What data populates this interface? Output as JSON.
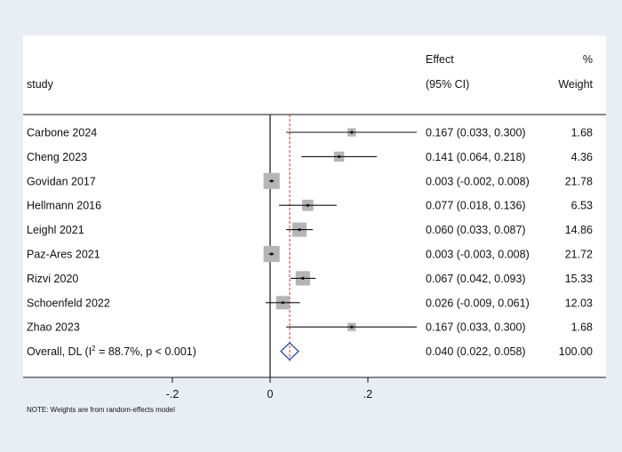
{
  "chart_data": {
    "type": "forest",
    "headers": {
      "study": "study",
      "effect_line1": "Effect",
      "effect_line2": "(95% CI)",
      "weight_line1": "%",
      "weight_line2": "Weight"
    },
    "studies": [
      {
        "label": "Carbone 2024",
        "effect": 0.167,
        "lo": 0.033,
        "hi": 0.3,
        "ci_text": "0.167 (0.033, 0.300)",
        "weight": "1.68"
      },
      {
        "label": "Cheng 2023",
        "effect": 0.141,
        "lo": 0.064,
        "hi": 0.218,
        "ci_text": "0.141 (0.064, 0.218)",
        "weight": "4.36"
      },
      {
        "label": "Govidan 2017",
        "effect": 0.003,
        "lo": -0.002,
        "hi": 0.008,
        "ci_text": "0.003 (-0.002, 0.008)",
        "weight": "21.78"
      },
      {
        "label": "Hellmann 2016",
        "effect": 0.077,
        "lo": 0.018,
        "hi": 0.136,
        "ci_text": "0.077 (0.018, 0.136)",
        "weight": "6.53"
      },
      {
        "label": "Leighl 2021",
        "effect": 0.06,
        "lo": 0.033,
        "hi": 0.087,
        "ci_text": "0.060 (0.033, 0.087)",
        "weight": "14.86"
      },
      {
        "label": "Paz-Ares 2021",
        "effect": 0.003,
        "lo": -0.003,
        "hi": 0.008,
        "ci_text": "0.003 (-0.003, 0.008)",
        "weight": "21.72"
      },
      {
        "label": "Rizvi 2020",
        "effect": 0.067,
        "lo": 0.042,
        "hi": 0.093,
        "ci_text": "0.067 (0.042, 0.093)",
        "weight": "15.33"
      },
      {
        "label": "Schoenfeld 2022",
        "effect": 0.026,
        "lo": -0.009,
        "hi": 0.061,
        "ci_text": "0.026 (-0.009, 0.061)",
        "weight": "12.03"
      },
      {
        "label": "Zhao 2023",
        "effect": 0.167,
        "lo": 0.033,
        "hi": 0.3,
        "ci_text": "0.167 (0.033, 0.300)",
        "weight": "1.68"
      }
    ],
    "overall": {
      "label_prefix": "Overall, DL (I",
      "label_sup": "2",
      "label_suffix": " = 88.7%, p < 0.001)",
      "effect": 0.04,
      "lo": 0.022,
      "hi": 0.058,
      "ci_text": "0.040 (0.022, 0.058)",
      "weight": "100.00"
    },
    "x_ticks": [
      {
        "value": -0.2,
        "label": "-.2"
      },
      {
        "value": 0,
        "label": "0"
      },
      {
        "value": 0.2,
        "label": ".2"
      }
    ],
    "xlim": [
      -0.28,
      0.3
    ],
    "null_line": 0,
    "note": "NOTE: Weights are from random-effects model",
    "colors": {
      "background": "#e9eef4",
      "panel": "#ffffff",
      "box": "#b5b5b5",
      "overall_line": "#c0392b",
      "diamond": "#1f3a93"
    }
  }
}
